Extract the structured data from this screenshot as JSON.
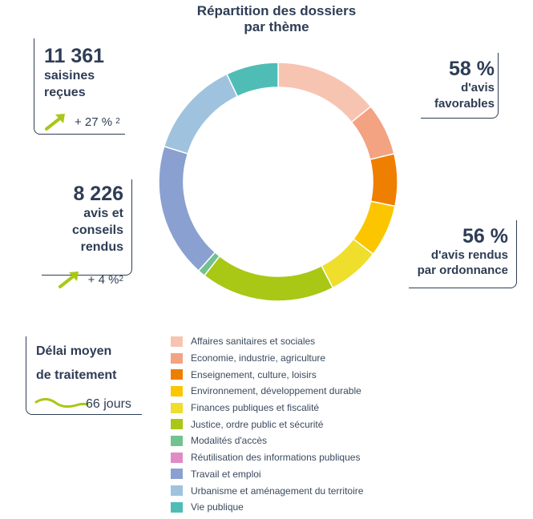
{
  "chart_data": {
    "type": "pie",
    "title_lines": [
      "Répartition des dossiers",
      "par thème"
    ],
    "legend": [
      {
        "label": "Affaires sanitaires et sociales",
        "color": "#f8c4b2",
        "value": 14
      },
      {
        "label": "Economie, industrie, agriculture",
        "color": "#f3a282",
        "value": 7
      },
      {
        "label": "Enseignement, culture, loisirs",
        "color": "#ee7f00",
        "value": 7
      },
      {
        "label": "Environnement, développement durable",
        "color": "#fbc600",
        "value": 7
      },
      {
        "label": "Finances publiques et fiscalité",
        "color": "#efde2c",
        "value": 7
      },
      {
        "label": "Justice, ordre public et sécurité",
        "color": "#a9c715",
        "value": 18
      },
      {
        "label": "Modalités d'accès",
        "color": "#72c28f",
        "value": 1
      },
      {
        "label": "Réutilisation des informations publiques",
        "color": "#e08bc4",
        "value": 0
      },
      {
        "label": "Travail et emploi",
        "color": "#8aa0d0",
        "value": 18
      },
      {
        "label": "Urbanisme et aménagement du territoire",
        "color": "#9fc3de",
        "value": 13
      },
      {
        "label": "Vie publique",
        "color": "#4fbdb6",
        "value": 7
      }
    ]
  },
  "stats": {
    "saisines": {
      "value": "11 361",
      "line1": "saisines",
      "line2": "reçues",
      "trend": "+ 27 %",
      "trend_note": "2"
    },
    "avis_favorables": {
      "value": "58 %",
      "line1": "d'avis",
      "line2": "favorables"
    },
    "conseils": {
      "value": "8 226",
      "line1": "avis et",
      "line2": "conseils rendus",
      "trend": "+ 4 %",
      "trend_note": "2"
    },
    "ordonnance": {
      "value": "56 %",
      "line1": "d'avis rendus",
      "line2": "par ordonnance"
    },
    "delai": {
      "line1": "Délai moyen",
      "line2": "de traitement",
      "value": "66 jours"
    }
  },
  "colors": {
    "text": "#2e3d55",
    "accent_green": "#a9c715"
  }
}
